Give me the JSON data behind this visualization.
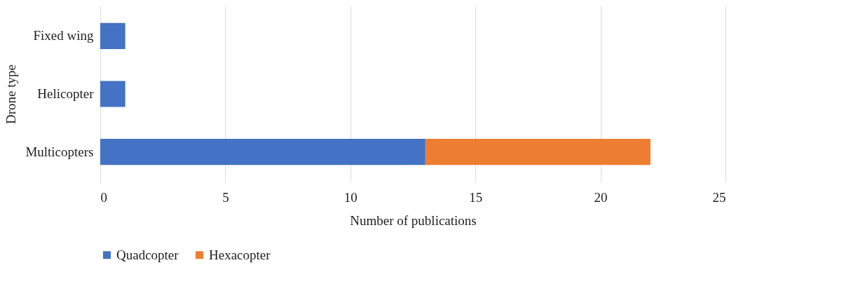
{
  "chart_data": {
    "type": "bar",
    "orientation": "horizontal",
    "stacked": true,
    "categories": [
      "Fixed wing",
      "Helicopter",
      "Multicopters"
    ],
    "series": [
      {
        "name": "Quadcopter",
        "color": "#4472c4",
        "values": [
          1,
          1,
          13
        ]
      },
      {
        "name": "Hexacopter",
        "color": "#ed7d31",
        "values": [
          null,
          null,
          9
        ]
      }
    ],
    "xlim": [
      0,
      25
    ],
    "xticks": [
      0,
      5,
      10,
      15,
      20,
      25
    ],
    "xlabel": "Number of publications",
    "ylabel": "Drone type",
    "grid": "x",
    "legend": "bottom"
  }
}
